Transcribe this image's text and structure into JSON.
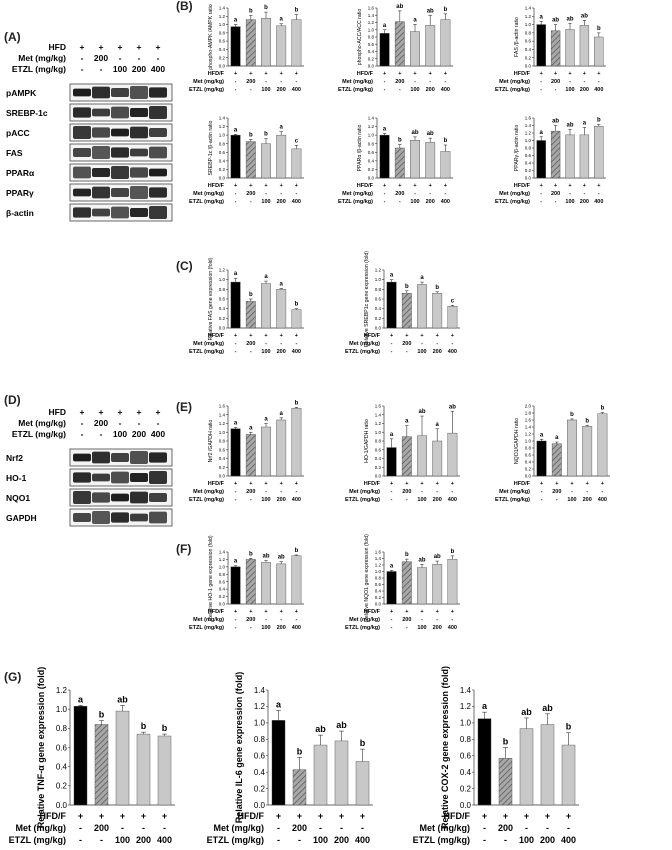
{
  "panel_labels": {
    "A": "(A)",
    "B": "(B)",
    "C": "(C)",
    "D": "(D)",
    "E": "(E)",
    "F": "(F)",
    "G": "(G)"
  },
  "colors": {
    "black": "#000000",
    "hatch": "#8a8a8a",
    "gray": "#c8c8c8",
    "band": "#1a1a1a"
  },
  "western_A": {
    "header_rows": [
      {
        "label": "HFD",
        "cells": [
          "+",
          "+",
          "+",
          "+",
          "+"
        ]
      },
      {
        "label": "Met (mg/kg)",
        "cells": [
          "-",
          "200",
          "-",
          "-",
          "-"
        ]
      },
      {
        "label": "ETZL (mg/kg)",
        "cells": [
          "-",
          "-",
          "100",
          "200",
          "400"
        ]
      }
    ],
    "blots": [
      "pAMPK",
      "SREBP-1c",
      "pACC",
      "FAS",
      "PPARα",
      "PPARγ",
      "β-actin"
    ]
  },
  "western_D": {
    "header_rows": [
      {
        "label": "HFD",
        "cells": [
          "+",
          "+",
          "+",
          "+",
          "+"
        ]
      },
      {
        "label": "Met (mg/kg)",
        "cells": [
          "-",
          "200",
          "-",
          "-",
          "-"
        ]
      },
      {
        "label": "ETZL (mg/kg)",
        "cells": [
          "-",
          "-",
          "100",
          "200",
          "400"
        ]
      }
    ],
    "blots": [
      "Nrf2",
      "HO-1",
      "NQO1",
      "GAPDH"
    ]
  },
  "treatment_table": {
    "row_labels": [
      "HFD/F",
      "Met (mg/kg)",
      "ETZL (mg/kg)"
    ],
    "rows": [
      [
        "+",
        "+",
        "+",
        "+",
        "+"
      ],
      [
        "-",
        "200",
        "-",
        "-",
        "-"
      ],
      [
        "-",
        "-",
        "100",
        "200",
        "400"
      ]
    ]
  },
  "chart_data": [
    {
      "id": "B1",
      "type": "bar",
      "ylabel": "phospho-AMPK /AMPK ratio",
      "ylim": [
        0,
        1.4
      ],
      "yticks": [
        "0.0",
        "0.2",
        "0.4",
        "0.6",
        "0.8",
        "1.0",
        "1.2",
        "1.4"
      ],
      "values": [
        0.95,
        1.12,
        1.15,
        0.97,
        1.12
      ],
      "errors": [
        0.05,
        0.1,
        0.15,
        0.05,
        0.12
      ],
      "letters": [
        "a",
        "b",
        "b",
        "a",
        "b"
      ]
    },
    {
      "id": "B2",
      "type": "bar",
      "ylabel": "phospho-ACC/ACC ratio",
      "ylim": [
        0,
        1.6
      ],
      "yticks": [
        "0.0",
        "0.2",
        "0.4",
        "0.6",
        "0.8",
        "1.0",
        "1.2",
        "1.4",
        "1.6"
      ],
      "values": [
        0.9,
        1.22,
        0.95,
        1.12,
        1.28
      ],
      "errors": [
        0.1,
        0.3,
        0.2,
        0.28,
        0.16
      ],
      "letters": [
        "a",
        "ab",
        "a",
        "ab",
        "b"
      ]
    },
    {
      "id": "B3",
      "type": "bar",
      "ylabel": "FAS /β-actin ratio",
      "ylim": [
        0,
        1.4
      ],
      "yticks": [
        "0.0",
        "0.2",
        "0.4",
        "0.6",
        "0.8",
        "1.0",
        "1.2",
        "1.4"
      ],
      "values": [
        1.0,
        0.85,
        0.88,
        0.98,
        0.7
      ],
      "errors": [
        0.08,
        0.15,
        0.15,
        0.12,
        0.1
      ],
      "letters": [
        "a",
        "ab",
        "ab",
        "ab",
        "b"
      ]
    },
    {
      "id": "B4",
      "type": "bar",
      "ylabel": "SREBP-1c /β-actin ratio",
      "ylim": [
        0,
        1.4
      ],
      "yticks": [
        "0.0",
        "0.2",
        "0.4",
        "0.6",
        "0.8",
        "1.0",
        "1.2",
        "1.4"
      ],
      "values": [
        1.0,
        0.85,
        0.8,
        1.0,
        0.68
      ],
      "errors": [
        0.02,
        0.05,
        0.12,
        0.08,
        0.08
      ],
      "letters": [
        "a",
        "b",
        "b",
        "a",
        "c"
      ]
    },
    {
      "id": "B5",
      "type": "bar",
      "ylabel": "PPARα /β-actin ratio",
      "ylim": [
        0,
        1.4
      ],
      "yticks": [
        "0.0",
        "0.2",
        "0.4",
        "0.6",
        "0.8",
        "1.0",
        "1.2",
        "1.4"
      ],
      "values": [
        1.0,
        0.7,
        0.88,
        0.83,
        0.62
      ],
      "errors": [
        0.04,
        0.08,
        0.08,
        0.1,
        0.15
      ],
      "letters": [
        "a",
        "b",
        "ab",
        "ab",
        "b"
      ]
    },
    {
      "id": "B6",
      "type": "bar",
      "ylabel": "PPARγ /β-actin ratio",
      "ylim": [
        0,
        1.6
      ],
      "yticks": [
        "0.0",
        "0.2",
        "0.4",
        "0.6",
        "0.8",
        "1.0",
        "1.2",
        "1.4",
        "1.6"
      ],
      "values": [
        1.0,
        1.25,
        1.15,
        1.15,
        1.38
      ],
      "errors": [
        0.1,
        0.15,
        0.15,
        0.2,
        0.05
      ],
      "letters": [
        "a",
        "ab",
        "ab",
        "a",
        "b"
      ]
    },
    {
      "id": "C1",
      "type": "bar",
      "ylabel": "Relative FAS gene expression (fold)",
      "ylim": [
        0,
        1.2
      ],
      "yticks": [
        "0.0",
        "0.2",
        "0.4",
        "0.6",
        "0.8",
        "1.0",
        "1.2"
      ],
      "values": [
        0.95,
        0.55,
        0.92,
        0.8,
        0.38
      ],
      "errors": [
        0.08,
        0.05,
        0.05,
        0.02,
        0.02
      ],
      "letters": [
        "a",
        "b",
        "a",
        "a",
        "b"
      ]
    },
    {
      "id": "C2",
      "type": "bar",
      "ylabel": "Relative SREBP1c gene expression (fold)",
      "ylim": [
        0,
        1.2
      ],
      "yticks": [
        "0.0",
        "0.2",
        "0.4",
        "0.6",
        "0.8",
        "1.0",
        "1.2"
      ],
      "values": [
        0.95,
        0.72,
        0.9,
        0.72,
        0.45
      ],
      "errors": [
        0.05,
        0.05,
        0.05,
        0.03,
        0.02
      ],
      "letters": [
        "a",
        "b",
        "a",
        "b",
        "c"
      ]
    },
    {
      "id": "E1",
      "type": "bar",
      "ylabel": "Nrf2 /GAPDH ratio",
      "ylim": [
        0,
        1.6
      ],
      "yticks": [
        "0.0",
        "0.2",
        "0.4",
        "0.6",
        "0.8",
        "1.0",
        "1.2",
        "1.4",
        "1.6"
      ],
      "values": [
        1.08,
        0.95,
        1.12,
        1.28,
        1.55
      ],
      "errors": [
        0.03,
        0.05,
        0.08,
        0.05,
        0.02
      ],
      "letters": [
        "a",
        "a",
        "a",
        "a",
        "b"
      ]
    },
    {
      "id": "E2",
      "type": "bar",
      "ylabel": "HO-1/GAPDH ratio",
      "ylim": [
        0,
        1.6
      ],
      "yticks": [
        "0.0",
        "0.2",
        "0.4",
        "0.6",
        "0.8",
        "1.0",
        "1.2",
        "1.4",
        "1.6"
      ],
      "values": [
        0.65,
        0.9,
        0.92,
        0.8,
        0.98
      ],
      "errors": [
        0.2,
        0.25,
        0.45,
        0.28,
        0.5
      ],
      "letters": [
        "a",
        "a",
        "ab",
        "a",
        "ab"
      ]
    },
    {
      "id": "E3",
      "type": "bar",
      "ylabel": "NQO1/GAPDH ratio",
      "ylim": [
        0,
        2.0
      ],
      "yticks": [
        "0.0",
        "0.2",
        "0.4",
        "0.6",
        "0.8",
        "1.0",
        "1.2",
        "1.4",
        "1.6",
        "1.8",
        "2.0"
      ],
      "values": [
        1.0,
        0.92,
        1.6,
        1.42,
        1.78
      ],
      "errors": [
        0.05,
        0.05,
        0.03,
        0.03,
        0.03
      ],
      "letters": [
        "a",
        "a",
        "b",
        "b",
        "b"
      ]
    },
    {
      "id": "F1",
      "type": "bar",
      "ylabel": "Relative HO-1 gene expression (fold)",
      "ylim": [
        0,
        1.4
      ],
      "yticks": [
        "0.0",
        "0.2",
        "0.4",
        "0.6",
        "0.8",
        "1.0",
        "1.2",
        "1.4"
      ],
      "values": [
        1.0,
        1.2,
        1.12,
        1.08,
        1.3
      ],
      "errors": [
        0.03,
        0.03,
        0.05,
        0.06,
        0.02
      ],
      "letters": [
        "a",
        "b",
        "ab",
        "ab",
        "b"
      ]
    },
    {
      "id": "F2",
      "type": "bar",
      "ylabel": "Relative NQO1 gene expression (fold)",
      "ylim": [
        0,
        1.6
      ],
      "yticks": [
        "0.0",
        "0.2",
        "0.4",
        "0.6",
        "0.8",
        "1.0",
        "1.2",
        "1.4",
        "1.6"
      ],
      "values": [
        1.0,
        1.3,
        1.12,
        1.22,
        1.38
      ],
      "errors": [
        0.03,
        0.08,
        0.1,
        0.1,
        0.1
      ],
      "letters": [
        "a",
        "b",
        "ab",
        "ab",
        "b"
      ]
    },
    {
      "id": "G1",
      "type": "bar",
      "ylabel": "Relative TNF-α gene expression (fold)",
      "ylim": [
        0,
        1.2
      ],
      "yticks": [
        "0.0",
        "0.2",
        "0.4",
        "0.6",
        "0.8",
        "1.0",
        "1.2"
      ],
      "values": [
        1.03,
        0.84,
        0.98,
        0.74,
        0.72
      ],
      "errors": [
        0.01,
        0.04,
        0.06,
        0.02,
        0.02
      ],
      "letters": [
        "a",
        "b",
        "ab",
        "b",
        "b"
      ]
    },
    {
      "id": "G2",
      "type": "bar",
      "ylabel": "Relative IL-6 gene expression (fold)",
      "ylim": [
        0,
        1.4
      ],
      "yticks": [
        "0.0",
        "0.2",
        "0.4",
        "0.6",
        "0.8",
        "1.0",
        "1.2",
        "1.4"
      ],
      "values": [
        1.03,
        0.43,
        0.73,
        0.78,
        0.53
      ],
      "errors": [
        0.12,
        0.15,
        0.12,
        0.12,
        0.15
      ],
      "letters": [
        "a",
        "b",
        "ab",
        "ab",
        "b"
      ]
    },
    {
      "id": "G3",
      "type": "bar",
      "ylabel": "Relative COX-2 gene expression (fold)",
      "ylim": [
        0,
        1.4
      ],
      "yticks": [
        "0.0",
        "0.2",
        "0.4",
        "0.6",
        "0.8",
        "1.0",
        "1.2",
        "1.4"
      ],
      "values": [
        1.05,
        0.57,
        0.93,
        0.98,
        0.73
      ],
      "errors": [
        0.08,
        0.13,
        0.13,
        0.13,
        0.15
      ],
      "letters": [
        "a",
        "b",
        "ab",
        "ab",
        "b"
      ]
    }
  ]
}
